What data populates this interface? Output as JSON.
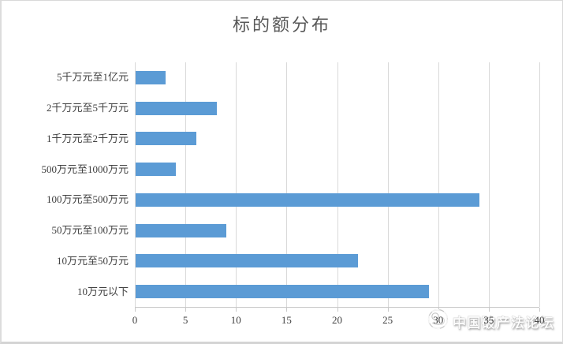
{
  "title": "标的额分布",
  "watermark": {
    "text": "中国破产法论坛",
    "logo": "forum-logo"
  },
  "colors": {
    "bar": "#5b9bd5",
    "gridline": "#d9d9d9",
    "axis_line": "#c9c9c9",
    "title_text": "#595959",
    "axis_text": "#3f3f3f",
    "frame_border": "#d9d9d9",
    "background": "#ffffff"
  },
  "chart_data": {
    "type": "bar",
    "orientation": "horizontal",
    "title": "标的额分布",
    "row_order": "top-to-bottom",
    "categories": [
      "5千万元至1亿元",
      "2千万元至5千万元",
      "1千万元至2千万元",
      "500万元至1000万元",
      "100万元至500万元",
      "50万元至100万元",
      "10万元至50万元",
      "10万元以下"
    ],
    "values": [
      3,
      8,
      6,
      4,
      34,
      9,
      22,
      29
    ],
    "xlabel": "",
    "ylabel": "",
    "xlim": [
      0,
      40
    ],
    "xticks": [
      0,
      5,
      10,
      15,
      20,
      25,
      30,
      35,
      40
    ],
    "grid": true,
    "legend": false
  }
}
